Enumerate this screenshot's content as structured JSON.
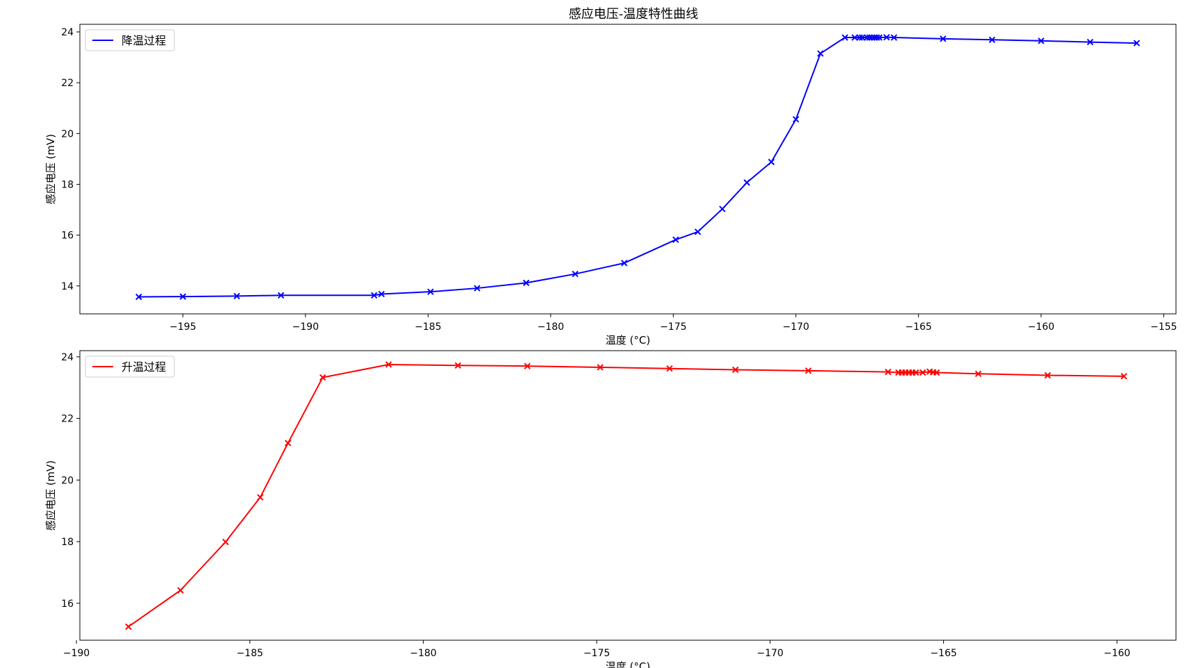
{
  "figure": {
    "title": "感应电压-温度特性曲线"
  },
  "chart_data": [
    {
      "type": "line",
      "title": "感应电压-温度特性曲线",
      "xlabel": "温度 (°C)",
      "ylabel": "感应电压 (mV)",
      "xlim": [
        -199.2,
        -154.5
      ],
      "ylim": [
        12.9,
        24.3
      ],
      "xticks": [
        -195,
        -190,
        -185,
        -180,
        -175,
        -170,
        -165,
        -160,
        -155
      ],
      "yticks": [
        14,
        16,
        18,
        20,
        22,
        24
      ],
      "xtick_labels": [
        "−195",
        "−190",
        "−185",
        "−180",
        "−175",
        "−170",
        "−165",
        "−160",
        "−155"
      ],
      "ytick_labels": [
        "14",
        "16",
        "18",
        "20",
        "22",
        "24"
      ],
      "legend_position": "upper-left",
      "grid": false,
      "series": [
        {
          "name": "降温过程",
          "color": "#0000ff",
          "marker": "x",
          "x": [
            -196.8,
            -195.0,
            -192.8,
            -191.0,
            -187.2,
            -186.9,
            -184.9,
            -183.0,
            -181.0,
            -179.0,
            -177.0,
            -174.9,
            -174.0,
            -173.0,
            -172.0,
            -171.0,
            -170.0,
            -169.0,
            -168.0,
            -167.6,
            -167.4,
            -167.3,
            -167.1,
            -167.0,
            -166.9,
            -166.8,
            -166.7,
            -166.6,
            -166.3,
            -166.0,
            -164.0,
            -162.0,
            -160.0,
            -158.0,
            -156.1
          ],
          "y": [
            13.57,
            13.58,
            13.6,
            13.63,
            13.63,
            13.68,
            13.77,
            13.91,
            14.12,
            14.47,
            14.9,
            15.82,
            16.13,
            17.03,
            18.07,
            18.88,
            20.56,
            23.15,
            23.78,
            23.78,
            23.78,
            23.78,
            23.78,
            23.78,
            23.78,
            23.78,
            23.78,
            23.78,
            23.79,
            23.78,
            23.73,
            23.69,
            23.65,
            23.6,
            23.56
          ]
        }
      ]
    },
    {
      "type": "line",
      "title": "",
      "xlabel": "温度 (°C)",
      "ylabel": "感应电压 (mV)",
      "xlim": [
        -189.9,
        -158.3
      ],
      "ylim": [
        14.8,
        24.2
      ],
      "xticks": [
        -190,
        -185,
        -180,
        -175,
        -170,
        -165,
        -160
      ],
      "yticks": [
        16,
        18,
        20,
        22,
        24
      ],
      "xtick_labels": [
        "−190",
        "−185",
        "−180",
        "−175",
        "−170",
        "−165",
        "−160"
      ],
      "ytick_labels": [
        "16",
        "18",
        "20",
        "22",
        "24"
      ],
      "legend_position": "upper-left",
      "grid": false,
      "series": [
        {
          "name": "升温过程",
          "color": "#ff0000",
          "marker": "x",
          "x": [
            -188.5,
            -187.0,
            -185.7,
            -184.7,
            -183.9,
            -182.9,
            -181.0,
            -179.0,
            -177.0,
            -174.9,
            -172.9,
            -171.0,
            -168.9,
            -166.6,
            -166.3,
            -166.2,
            -166.1,
            -166.0,
            -165.9,
            -165.8,
            -165.6,
            -165.4,
            -165.3,
            -165.2,
            -164.0,
            -162.0,
            -159.8
          ],
          "y": [
            15.24,
            16.42,
            17.99,
            19.44,
            21.2,
            23.33,
            23.75,
            23.72,
            23.7,
            23.66,
            23.62,
            23.58,
            23.55,
            23.51,
            23.49,
            23.49,
            23.49,
            23.49,
            23.49,
            23.49,
            23.49,
            23.52,
            23.5,
            23.49,
            23.45,
            23.4,
            23.37
          ]
        }
      ]
    }
  ]
}
